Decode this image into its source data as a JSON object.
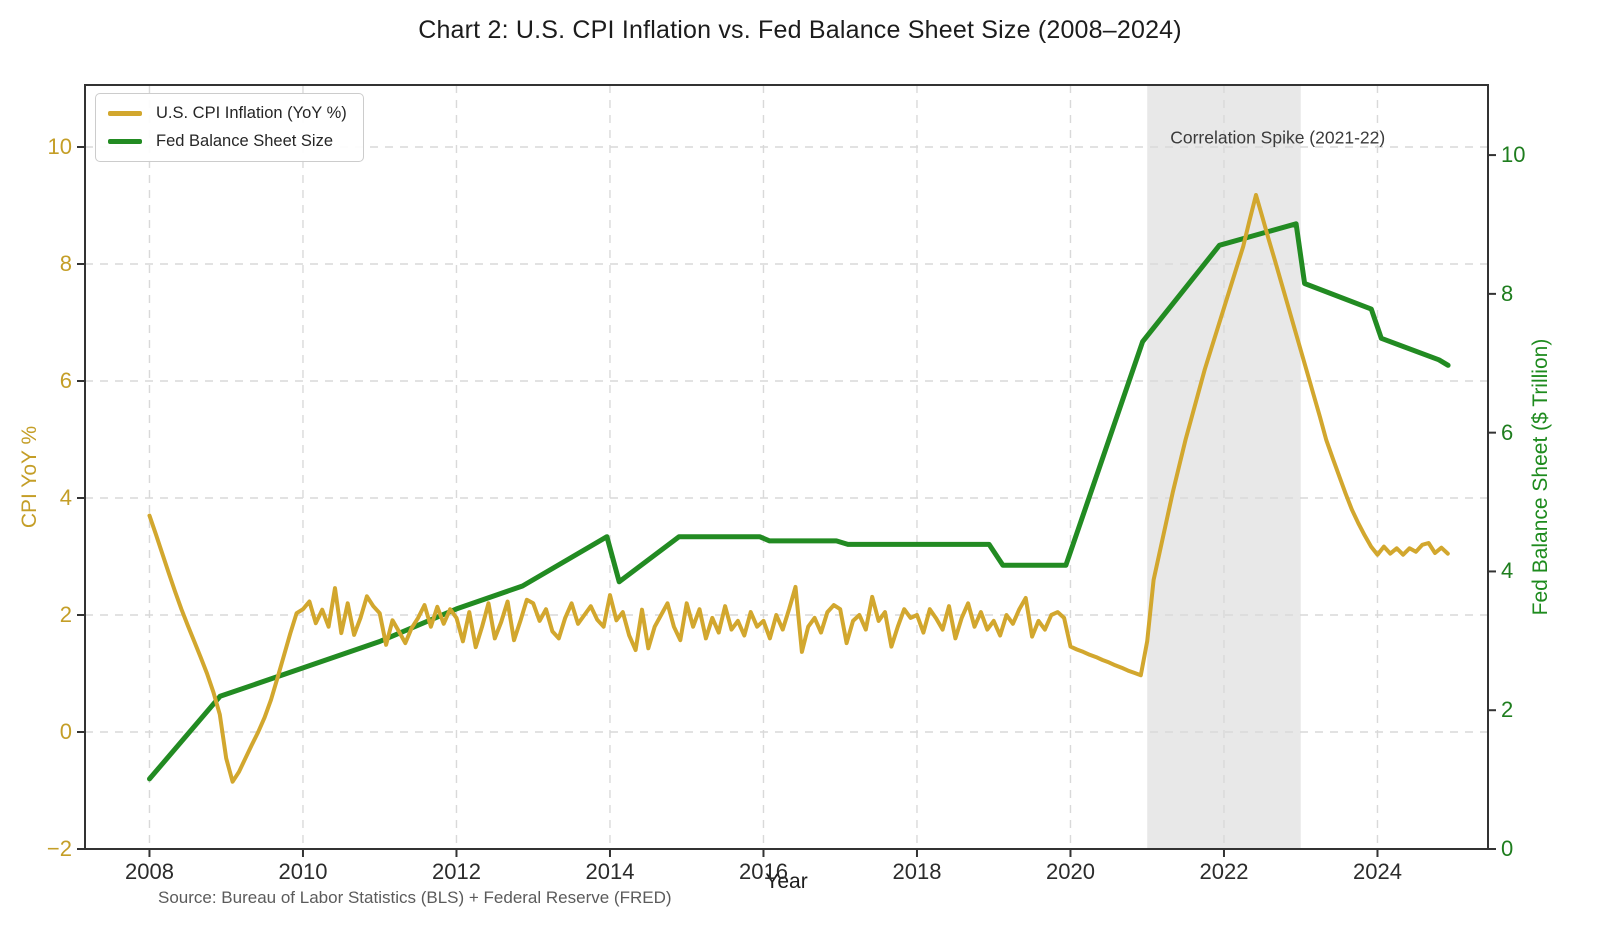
{
  "figure": {
    "source_note": "Source: Bureau of Labor Statistics (BLS) + Federal Reserve (FRED)"
  },
  "chart_data": {
    "type": "line",
    "title": "Chart 2: U.S. CPI Inflation vs. Fed Balance Sheet Size (2008–2024)",
    "xlabel": "Year",
    "ylabel_left": "CPI YoY %",
    "ylabel_right": "Fed Balance Sheet ($ Trillion)",
    "xlim": [
      2007.16,
      2025.44
    ],
    "ylim_left": [
      -2,
      11.06
    ],
    "ylim_right": [
      0,
      11.01
    ],
    "grid": true,
    "x_ticks": [
      2008,
      2010,
      2012,
      2014,
      2016,
      2018,
      2020,
      2022,
      2024
    ],
    "x_tick_labels": [
      "2008",
      "2010",
      "2012",
      "2014",
      "2016",
      "2018",
      "2020",
      "2022",
      "2024"
    ],
    "y_ticks_left": [
      -2,
      0,
      2,
      4,
      6,
      8,
      10
    ],
    "y_tick_labels_left": [
      "−2",
      "0",
      "2",
      "4",
      "6",
      "8",
      "10"
    ],
    "y_ticks_right": [
      0,
      2,
      4,
      6,
      8,
      10
    ],
    "y_tick_labels_right": [
      "0",
      "2",
      "4",
      "6",
      "8",
      "10"
    ],
    "colors": {
      "cpi_line": "#D2A72E",
      "fed_line": "#228B22",
      "band": "#E8E8E8",
      "grid": "#D9D9D9",
      "spine": "#333333",
      "left_axis_text": "#C49E27",
      "right_axis_text": "#1E7D1E"
    },
    "legend": {
      "position": "upper left",
      "entries": [
        {
          "label": "U.S. CPI Inflation (YoY %)",
          "color": "#D2A72E"
        },
        {
          "label": "Fed Balance Sheet Size",
          "color": "#228B22"
        }
      ]
    },
    "annotation": {
      "label": "Correlation Spike (2021-22)",
      "band_x": [
        2021,
        2023
      ],
      "label_x": 2022.7,
      "label_y": 10.15
    },
    "series": [
      {
        "name": "U.S. CPI Inflation (YoY %)",
        "axis": "left",
        "color": "#D2A72E",
        "monthly": {
          "start_year": 2008,
          "values": [
            3.7,
            3.38,
            3.05,
            2.72,
            2.4,
            2.1,
            1.82,
            1.55,
            1.28,
            1.0,
            0.68,
            0.3,
            -0.45,
            -0.85,
            -0.68,
            -0.45,
            -0.22,
            0.0,
            0.25,
            0.55,
            0.92,
            1.3,
            1.68,
            2.03,
            2.1,
            2.23,
            1.86,
            2.09,
            1.8,
            2.46,
            1.69,
            2.2,
            1.66,
            1.95,
            2.32,
            2.15,
            2.03,
            1.49,
            1.91,
            1.72,
            1.52,
            1.78,
            1.95,
            2.17,
            1.8,
            2.14,
            1.85,
            2.1,
            1.95,
            1.55,
            2.05,
            1.45,
            1.8,
            2.2,
            1.6,
            1.88,
            2.23,
            1.57,
            1.9,
            2.26,
            2.2,
            1.9,
            2.1,
            1.72,
            1.6,
            1.95,
            2.2,
            1.85,
            2.0,
            2.15,
            1.92,
            1.8,
            2.34,
            1.91,
            2.05,
            1.65,
            1.4,
            2.09,
            1.43,
            1.8,
            2.0,
            2.2,
            1.8,
            1.57,
            2.2,
            1.8,
            2.1,
            1.6,
            1.95,
            1.7,
            2.15,
            1.75,
            1.9,
            1.65,
            2.05,
            1.8,
            1.9,
            1.6,
            2.0,
            1.75,
            2.1,
            2.48,
            1.37,
            1.8,
            1.95,
            1.7,
            2.05,
            2.17,
            2.1,
            1.52,
            1.9,
            2.0,
            1.75,
            2.31,
            1.9,
            2.05,
            1.46,
            1.8,
            2.1,
            1.95,
            2.0,
            1.7,
            2.1,
            1.94,
            1.75,
            2.15,
            1.6,
            1.95,
            2.2,
            1.8,
            2.05,
            1.75,
            1.9,
            1.65,
            2.0,
            1.85,
            2.1,
            2.29,
            1.63,
            1.9,
            1.75,
            2.0,
            2.05,
            1.95,
            1.46,
            1.41,
            1.37,
            1.32,
            1.28,
            1.23,
            1.19,
            1.14,
            1.1,
            1.05,
            1.01,
            0.97,
            1.55,
            2.6,
            3.1,
            3.6,
            4.1,
            4.55,
            5.0,
            5.4,
            5.8,
            6.2,
            6.55,
            6.9,
            7.25,
            7.6,
            7.95,
            8.3,
            8.75,
            9.18,
            8.8,
            8.42,
            8.05,
            7.67,
            7.29,
            6.91,
            6.53,
            6.15,
            5.77,
            5.39,
            4.99,
            4.68,
            4.38,
            4.08,
            3.8,
            3.57,
            3.36,
            3.17,
            3.03,
            3.17,
            3.05,
            3.14,
            3.03,
            3.14,
            3.08,
            3.2,
            3.23,
            3.06,
            3.15,
            3.05
          ]
        }
      },
      {
        "name": "Fed Balance Sheet Size",
        "axis": "right",
        "color": "#228B22",
        "points": [
          [
            2008.0,
            1.01
          ],
          [
            2008.92,
            2.2
          ],
          [
            2010.0,
            2.61
          ],
          [
            2011.0,
            2.99
          ],
          [
            2012.0,
            3.46
          ],
          [
            2012.86,
            3.79
          ],
          [
            2013.96,
            4.5
          ],
          [
            2014.12,
            3.85
          ],
          [
            2014.9,
            4.5
          ],
          [
            2015.95,
            4.5
          ],
          [
            2016.08,
            4.44
          ],
          [
            2016.95,
            4.44
          ],
          [
            2017.1,
            4.39
          ],
          [
            2018.94,
            4.39
          ],
          [
            2019.12,
            4.09
          ],
          [
            2019.94,
            4.09
          ],
          [
            2020.94,
            7.31
          ],
          [
            2021.94,
            8.7
          ],
          [
            2022.94,
            9.01
          ],
          [
            2023.05,
            8.15
          ],
          [
            2023.92,
            7.78
          ],
          [
            2024.05,
            7.36
          ],
          [
            2024.8,
            7.05
          ],
          [
            2024.92,
            6.97
          ]
        ]
      }
    ]
  }
}
